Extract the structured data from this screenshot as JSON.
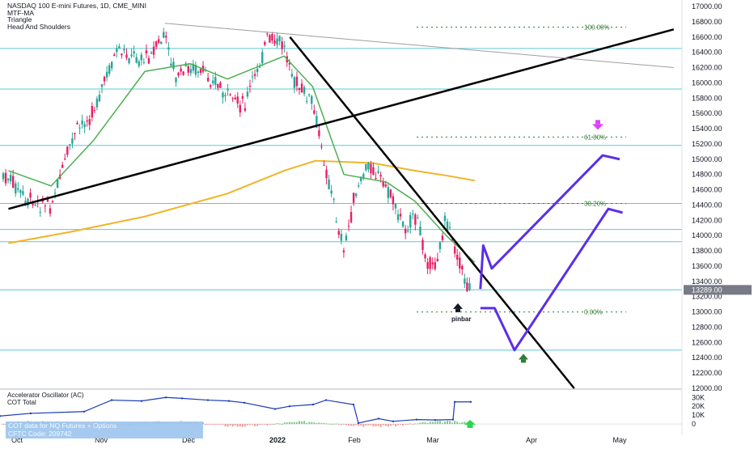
{
  "header": {
    "title": "NASDAQ 100 E-mini Futures, 1D, CME_MINI",
    "indicators": [
      "MTF-MA",
      "Triangle",
      "Head And Shoulders"
    ]
  },
  "oscillator": {
    "titles": [
      "Accelerator Oscillator (AC)",
      "COT Total"
    ],
    "cot_box_lines": [
      "COT data for NQ Futures + Options",
      "CFTC Code: 209742"
    ],
    "axis_labels": [
      "30K",
      "20K",
      "10K",
      "0"
    ]
  },
  "price_axis": {
    "labels": [
      "17000.00",
      "16800.00",
      "16600.00",
      "16400.00",
      "16200.00",
      "16000.00",
      "15800.00",
      "15600.00",
      "15400.00",
      "15200.00",
      "15000.00",
      "14800.00",
      "14600.00",
      "14400.00",
      "14200.00",
      "14000.00",
      "13800.00",
      "13600.00",
      "13400.00",
      "13200.00",
      "13000.00",
      "12800.00",
      "12600.00",
      "12400.00",
      "12200.00",
      "12000.00"
    ],
    "current_price": "13289.00",
    "current_color": "#787b86"
  },
  "fib_labels": {
    "f100": "100.00%",
    "f618": "61.80%",
    "f382": "38.20%",
    "f0": "0.00%"
  },
  "annotation": {
    "pinbar": "pinbar"
  },
  "time_axis": {
    "labels": [
      {
        "text": "Oct",
        "bold": false
      },
      {
        "text": "Nov",
        "bold": false
      },
      {
        "text": "Dec",
        "bold": false
      },
      {
        "text": "2022",
        "bold": true
      },
      {
        "text": "Feb",
        "bold": false
      },
      {
        "text": "Mar",
        "bold": false
      },
      {
        "text": "Apr",
        "bold": false
      },
      {
        "text": "May",
        "bold": false
      }
    ]
  },
  "chart_data": {
    "type": "candlestick",
    "title": "NASDAQ 100 E-mini Futures, 1D, CME_MINI",
    "ylim": [
      12000,
      17000
    ],
    "horizontal_levels": [
      16450,
      15920,
      15180,
      14420,
      14080,
      13920,
      13290,
      12500
    ],
    "fib_levels": {
      "100.00%": 16730,
      "61.80%": 15290,
      "38.20%": 14420,
      "0.00%": 13000
    },
    "price_path": [
      [
        "2021-09-28",
        14750
      ],
      [
        "2021-10-04",
        14450
      ],
      [
        "2021-10-13",
        14400
      ],
      [
        "2021-10-21",
        15300
      ],
      [
        "2021-10-28",
        15650
      ],
      [
        "2021-11-05",
        16400
      ],
      [
        "2021-11-15",
        16300
      ],
      [
        "2021-11-22",
        16600
      ],
      [
        "2021-11-26",
        16050
      ],
      [
        "2021-12-01",
        16200
      ],
      [
        "2021-12-09",
        16050
      ],
      [
        "2021-12-14",
        15800
      ],
      [
        "2021-12-20",
        15700
      ],
      [
        "2021-12-28",
        16550
      ],
      [
        "2022-01-03",
        16500
      ],
      [
        "2022-01-06",
        16050
      ],
      [
        "2022-01-13",
        15700
      ],
      [
        "2022-01-21",
        14300
      ],
      [
        "2022-01-24",
        13800
      ],
      [
        "2022-01-28",
        14550
      ],
      [
        "2022-02-02",
        14950
      ],
      [
        "2022-02-10",
        14500
      ],
      [
        "2022-02-14",
        14100
      ],
      [
        "2022-02-18",
        14250
      ],
      [
        "2022-02-24",
        13500
      ],
      [
        "2022-03-01",
        14200
      ],
      [
        "2022-03-08",
        13350
      ],
      [
        "2022-03-11",
        13289
      ]
    ],
    "moving_averages": [
      {
        "name": "MTF-MA",
        "color": "#4caf50",
        "points": [
          [
            "2021-09-28",
            14850
          ],
          [
            "2021-10-13",
            14650
          ],
          [
            "2021-10-28",
            15250
          ],
          [
            "2021-11-15",
            16150
          ],
          [
            "2021-12-01",
            16250
          ],
          [
            "2021-12-14",
            16050
          ],
          [
            "2022-01-03",
            16350
          ],
          [
            "2022-01-13",
            15950
          ],
          [
            "2022-01-24",
            14800
          ],
          [
            "2022-02-08",
            14700
          ],
          [
            "2022-02-18",
            14450
          ],
          [
            "2022-03-01",
            14000
          ],
          [
            "2022-03-11",
            13650
          ]
        ]
      },
      {
        "color": "#f0b429",
        "points": [
          [
            "2021-09-28",
            13900
          ],
          [
            "2021-10-20",
            14050
          ],
          [
            "2021-11-15",
            14250
          ],
          [
            "2021-12-14",
            14550
          ],
          [
            "2022-01-03",
            14850
          ],
          [
            "2022-01-14",
            14980
          ],
          [
            "2022-02-03",
            14950
          ],
          [
            "2022-02-18",
            14850
          ],
          [
            "2022-03-02",
            14780
          ],
          [
            "2022-03-11",
            14720
          ]
        ]
      }
    ],
    "trend_lines": [
      {
        "from": [
          "2021-09-28",
          14350
        ],
        "to": [
          "2022-05-20",
          16700
        ],
        "color": "#000000"
      },
      {
        "from": [
          "2022-01-05",
          16600
        ],
        "to": [
          "2022-04-15",
          12000
        ],
        "color": "#000000"
      },
      {
        "from": [
          "2021-11-22",
          16780
        ],
        "to": [
          "2022-05-20",
          16200
        ],
        "color": "#9e9e9e"
      }
    ],
    "projection": [
      {
        "color": "#5b2ee8",
        "points": [
          [
            "2022-03-13",
            13300
          ],
          [
            "2022-03-14",
            13870
          ],
          [
            "2022-03-17",
            13570
          ],
          [
            "2022-04-25",
            15050
          ],
          [
            "2022-05-01",
            15000
          ]
        ]
      },
      {
        "color": "#5b2ee8",
        "points": [
          [
            "2022-03-13",
            13050
          ],
          [
            "2022-03-18",
            13050
          ],
          [
            "2022-03-25",
            12500
          ],
          [
            "2022-04-27",
            14350
          ],
          [
            "2022-05-02",
            14300
          ]
        ]
      }
    ],
    "oscillator_ylim": [
      -10000,
      33000
    ],
    "cot_total": [
      [
        0,
        9000
      ],
      [
        38,
        12000
      ],
      [
        104,
        14000
      ],
      [
        138,
        27000
      ],
      [
        175,
        26000
      ],
      [
        205,
        30000
      ],
      [
        225,
        29000
      ],
      [
        257,
        27000
      ],
      [
        283,
        26000
      ],
      [
        302,
        24000
      ],
      [
        340,
        17000
      ],
      [
        358,
        20000
      ],
      [
        387,
        22000
      ],
      [
        403,
        27000
      ],
      [
        437,
        22000
      ],
      [
        443,
        1000
      ],
      [
        468,
        6000
      ],
      [
        486,
        3000
      ],
      [
        515,
        5000
      ],
      [
        538,
        4500
      ],
      [
        560,
        5000
      ],
      [
        562,
        25000
      ],
      [
        582,
        25000
      ]
    ],
    "xlabel": "",
    "ylabel": ""
  }
}
